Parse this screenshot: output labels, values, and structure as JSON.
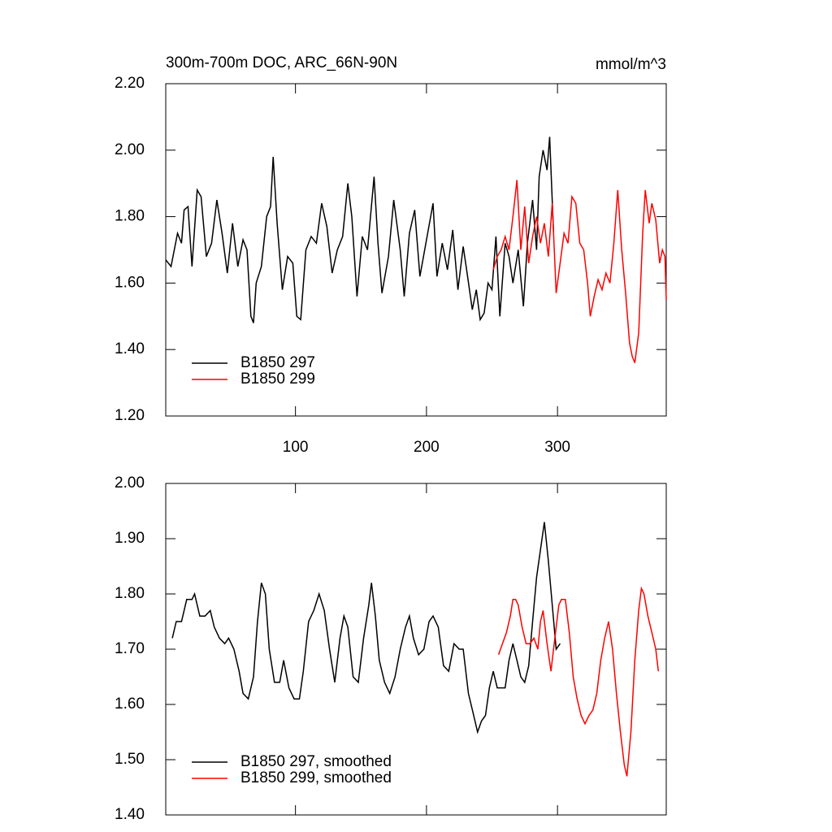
{
  "chart_data": [
    {
      "type": "line",
      "title": "300m-700m DOC, ARC_66N-90N",
      "units": "mmol/m^3",
      "xlim": [
        1,
        383
      ],
      "ylim": [
        1.2,
        2.2
      ],
      "xticks": [
        100,
        200,
        300
      ],
      "xtick_labels": true,
      "yticks": [
        {
          "value": 1.2,
          "label": "1.20"
        },
        {
          "value": 1.4,
          "label": "1.40"
        },
        {
          "value": 1.6,
          "label": "1.60"
        },
        {
          "value": 1.8,
          "label": "1.80"
        },
        {
          "value": 2.0,
          "label": "2.00"
        },
        {
          "value": 2.2,
          "label": "2.20"
        }
      ],
      "legend": "lower left",
      "series": [
        {
          "name": "B1850 297",
          "color": "#000000",
          "x": [
            1,
            5,
            10,
            13,
            15,
            18,
            21,
            25,
            28,
            32,
            36,
            40,
            44,
            48,
            52,
            56,
            60,
            63,
            66,
            68,
            70,
            74,
            78,
            81,
            83,
            86,
            90,
            94,
            98,
            101,
            104,
            108,
            112,
            116,
            120,
            124,
            128,
            132,
            136,
            140,
            143,
            147,
            151,
            155,
            160,
            163,
            166,
            171,
            175,
            180,
            183,
            187,
            191,
            195,
            200,
            205,
            208,
            212,
            216,
            220,
            224,
            228,
            231,
            235,
            238,
            241,
            244,
            247,
            250,
            253,
            256,
            260,
            263,
            266,
            270,
            274,
            277,
            281,
            284,
            286,
            289,
            292,
            294,
            297
          ],
          "values": [
            1.67,
            1.65,
            1.75,
            1.72,
            1.82,
            1.83,
            1.65,
            1.88,
            1.86,
            1.68,
            1.72,
            1.85,
            1.75,
            1.63,
            1.78,
            1.65,
            1.73,
            1.7,
            1.5,
            1.48,
            1.6,
            1.65,
            1.8,
            1.83,
            1.98,
            1.78,
            1.58,
            1.68,
            1.66,
            1.5,
            1.49,
            1.7,
            1.74,
            1.72,
            1.84,
            1.77,
            1.63,
            1.7,
            1.74,
            1.9,
            1.8,
            1.56,
            1.74,
            1.7,
            1.92,
            1.72,
            1.57,
            1.68,
            1.85,
            1.7,
            1.56,
            1.75,
            1.82,
            1.62,
            1.73,
            1.84,
            1.62,
            1.72,
            1.64,
            1.76,
            1.58,
            1.71,
            1.63,
            1.52,
            1.58,
            1.49,
            1.51,
            1.6,
            1.58,
            1.74,
            1.5,
            1.72,
            1.68,
            1.6,
            1.7,
            1.53,
            1.72,
            1.85,
            1.7,
            1.92,
            2.0,
            1.94,
            2.04,
            1.75
          ]
        },
        {
          "name": "B1850 299",
          "color": "#ff0000",
          "x": [
            251,
            254,
            257,
            260,
            263,
            266,
            269,
            272,
            275,
            278,
            281,
            284,
            287,
            290,
            293,
            296,
            299,
            302,
            305,
            308,
            311,
            314,
            317,
            320,
            323,
            325,
            328,
            331,
            334,
            337,
            340,
            343,
            346,
            349,
            352,
            355,
            357,
            359,
            362,
            365,
            367,
            370,
            372,
            375,
            378,
            380,
            382,
            383
          ],
          "values": [
            1.64,
            1.68,
            1.7,
            1.74,
            1.7,
            1.8,
            1.91,
            1.7,
            1.83,
            1.66,
            1.74,
            1.8,
            1.72,
            1.78,
            1.68,
            1.84,
            1.57,
            1.66,
            1.75,
            1.72,
            1.86,
            1.84,
            1.72,
            1.7,
            1.6,
            1.5,
            1.56,
            1.61,
            1.58,
            1.63,
            1.6,
            1.72,
            1.88,
            1.7,
            1.57,
            1.42,
            1.38,
            1.36,
            1.45,
            1.75,
            1.88,
            1.78,
            1.84,
            1.79,
            1.66,
            1.7,
            1.68,
            1.55
          ]
        }
      ]
    },
    {
      "type": "line",
      "xlim": [
        1,
        383
      ],
      "ylim": [
        1.4,
        2.0
      ],
      "xticks": [
        100,
        200,
        300
      ],
      "xtick_labels": false,
      "yticks": [
        {
          "value": 1.4,
          "label": "1.40"
        },
        {
          "value": 1.5,
          "label": "1.50"
        },
        {
          "value": 1.6,
          "label": "1.60"
        },
        {
          "value": 1.7,
          "label": "1.70"
        },
        {
          "value": 1.8,
          "label": "1.80"
        },
        {
          "value": 1.9,
          "label": "1.90"
        },
        {
          "value": 2.0,
          "label": "2.00"
        }
      ],
      "legend": "lower left",
      "series": [
        {
          "name": "B1850 297, smoothed",
          "color": "#000000",
          "x": [
            6,
            9,
            13,
            17,
            21,
            23,
            27,
            31,
            35,
            38,
            42,
            46,
            49,
            53,
            57,
            60,
            64,
            68,
            71,
            74,
            77,
            80,
            84,
            88,
            91,
            95,
            99,
            103,
            106,
            110,
            114,
            118,
            122,
            126,
            130,
            134,
            137,
            140,
            144,
            148,
            152,
            156,
            158,
            161,
            164,
            168,
            172,
            176,
            180,
            184,
            187,
            190,
            194,
            198,
            202,
            205,
            209,
            213,
            217,
            221,
            225,
            228,
            232,
            236,
            239,
            242,
            245,
            248,
            251,
            254,
            257,
            260,
            263,
            266,
            269,
            272,
            275,
            278,
            281,
            284,
            287,
            290,
            293,
            296,
            299,
            302
          ],
          "values": [
            1.72,
            1.75,
            1.75,
            1.79,
            1.79,
            1.8,
            1.76,
            1.76,
            1.77,
            1.74,
            1.72,
            1.71,
            1.72,
            1.7,
            1.66,
            1.62,
            1.61,
            1.65,
            1.75,
            1.82,
            1.8,
            1.7,
            1.64,
            1.64,
            1.68,
            1.63,
            1.61,
            1.61,
            1.66,
            1.75,
            1.77,
            1.8,
            1.77,
            1.7,
            1.64,
            1.72,
            1.76,
            1.74,
            1.65,
            1.64,
            1.72,
            1.78,
            1.82,
            1.76,
            1.68,
            1.64,
            1.62,
            1.65,
            1.7,
            1.74,
            1.76,
            1.72,
            1.69,
            1.7,
            1.75,
            1.76,
            1.74,
            1.67,
            1.66,
            1.71,
            1.7,
            1.7,
            1.62,
            1.58,
            1.55,
            1.57,
            1.58,
            1.63,
            1.66,
            1.63,
            1.63,
            1.63,
            1.68,
            1.71,
            1.68,
            1.65,
            1.64,
            1.67,
            1.75,
            1.83,
            1.88,
            1.93,
            1.86,
            1.78,
            1.7,
            1.71
          ]
        },
        {
          "name": "B1850 299, smoothed",
          "color": "#ff0000",
          "x": [
            255,
            258,
            261,
            264,
            266,
            268,
            270,
            273,
            276,
            279,
            282,
            285,
            287,
            289,
            292,
            295,
            298,
            301,
            303,
            306,
            309,
            312,
            315,
            318,
            321,
            324,
            327,
            330,
            333,
            336,
            339,
            342,
            345,
            348,
            351,
            353,
            356,
            359,
            362,
            364,
            366,
            369,
            372,
            375,
            377
          ],
          "values": [
            1.69,
            1.71,
            1.73,
            1.76,
            1.79,
            1.79,
            1.78,
            1.74,
            1.71,
            1.71,
            1.72,
            1.7,
            1.75,
            1.77,
            1.71,
            1.66,
            1.72,
            1.78,
            1.79,
            1.79,
            1.73,
            1.65,
            1.61,
            1.58,
            1.565,
            1.58,
            1.59,
            1.62,
            1.68,
            1.72,
            1.75,
            1.7,
            1.62,
            1.55,
            1.49,
            1.47,
            1.55,
            1.68,
            1.77,
            1.81,
            1.8,
            1.76,
            1.73,
            1.7,
            1.66
          ]
        }
      ]
    }
  ]
}
